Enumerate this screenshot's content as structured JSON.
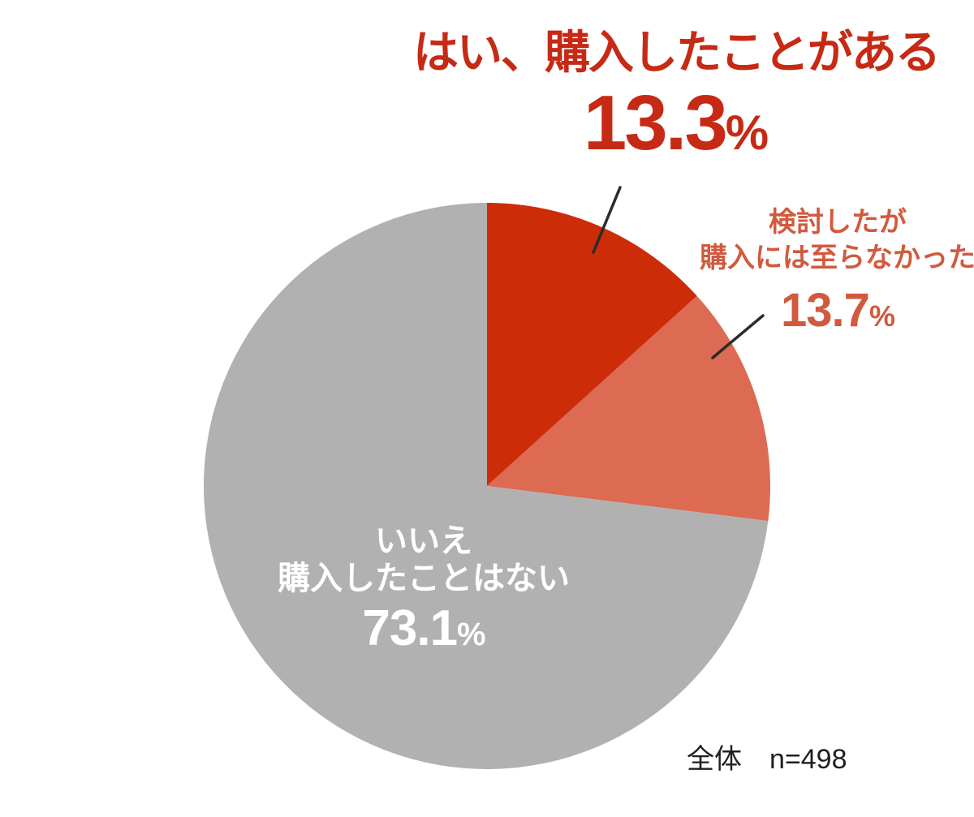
{
  "chart_data": {
    "type": "pie",
    "note": "全体　n=498",
    "note_color": "#1f1f1f",
    "start_angle_deg": 0,
    "direction": "clockwise",
    "legend_position": "none",
    "background_color": "#ffffff",
    "leader_line_color": "#2b2b2b",
    "slices": [
      {
        "id": "yes",
        "label": "はい、購入したことがある",
        "value": 13.3,
        "display_value": "13.3",
        "unit": "%",
        "color": "#cd2c08",
        "text_color": "#c62a15"
      },
      {
        "id": "considered",
        "label": "検討したが購入には至らなかった",
        "label_line1": "検討したが",
        "label_line2": "購入には至らなかった",
        "value": 13.7,
        "display_value": "13.7",
        "unit": "%",
        "color": "#dd6a52",
        "text_color": "#d15a3e"
      },
      {
        "id": "no",
        "label": "いいえ 購入したことはない",
        "label_line1": "いいえ",
        "label_line2": "購入したことはない",
        "value": 73.1,
        "display_value": "73.1",
        "unit": "%",
        "color": "#b2b1b1",
        "text_color": "#ffffff"
      }
    ]
  }
}
